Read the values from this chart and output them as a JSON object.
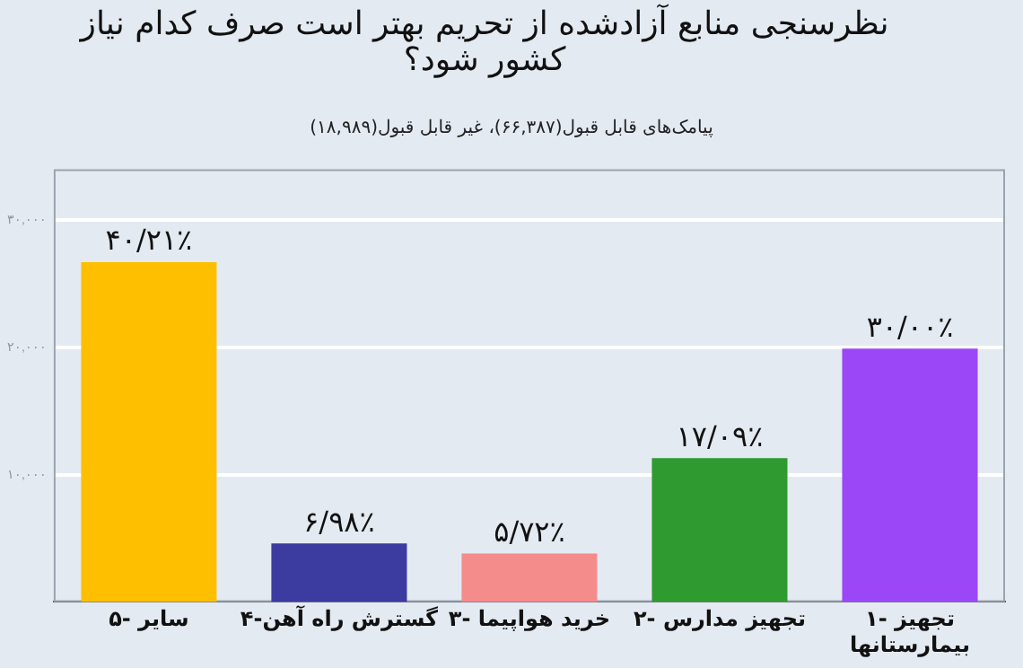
{
  "chart_data": {
    "type": "bar",
    "title": "نظرسنجی منابع آزادشده از تحریم بهتر است صرف کدام نیاز کشور شود؟",
    "subtitle": "پیامک‌های قابل قبول(۶۶,۳۸۷)، غیر قابل قبول(۱۸,۹۸۹)",
    "categories": [
      "۵- سایر",
      "۴-گسترش راه آهن",
      "۳- خرید هواپیما",
      "۲- تجهیز مدارس",
      "۱- تجهیز بیمارستانها"
    ],
    "values": [
      26700,
      4600,
      3800,
      11300,
      19900
    ],
    "colors": [
      "#fdbf00",
      "#3b3ba0",
      "#f58c8c",
      "#2f9a2f",
      "#9b47f8"
    ],
    "value_labels": [
      "۴۰/۲۱٪",
      "۶/۹۸٪",
      "۵/۷۲٪",
      "۱۷/۰۹٪",
      "۳۰/۰۰٪"
    ],
    "ylim": [
      0,
      34000
    ],
    "yticks": [
      {
        "value": 10000,
        "label": "۱۰,۰۰۰"
      },
      {
        "value": 20000,
        "label": "۲۰,۰۰۰"
      },
      {
        "value": 30000,
        "label": "۳۰,۰۰۰"
      }
    ],
    "grid": "y"
  }
}
